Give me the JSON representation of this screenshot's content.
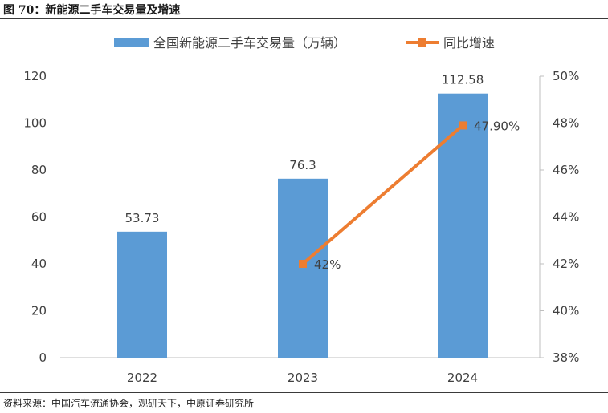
{
  "figure": {
    "title": "图 70：新能源二手车交易量及增速",
    "source": "资料来源：中国汽车流通协会，观研天下，中原证券研究所"
  },
  "colors": {
    "bar": "#5B9BD5",
    "line": "#ED7D31",
    "axis": "#BFBFBF",
    "text": "#404040"
  },
  "chart_data": {
    "type": "bar",
    "categories": [
      "2022",
      "2023",
      "2024"
    ],
    "series": [
      {
        "name": "全国新能源二手车交易量（万辆）",
        "type": "bar",
        "axis": "left",
        "values": [
          53.73,
          76.3,
          112.58
        ],
        "labels": [
          "53.73",
          "76.3",
          "112.58"
        ]
      },
      {
        "name": "同比增速",
        "type": "line",
        "axis": "right",
        "values": [
          null,
          42.0,
          47.9
        ],
        "labels": [
          "",
          "42%",
          "47.90%"
        ]
      }
    ],
    "y_left": {
      "min": 0,
      "max": 120,
      "ticks": [
        "0",
        "20",
        "40",
        "60",
        "80",
        "100",
        "120"
      ]
    },
    "y_right": {
      "min": 38,
      "max": 50,
      "ticks": [
        "38%",
        "40%",
        "42%",
        "44%",
        "46%",
        "48%",
        "50%"
      ]
    },
    "legend_position": "top-center",
    "grid": false
  }
}
